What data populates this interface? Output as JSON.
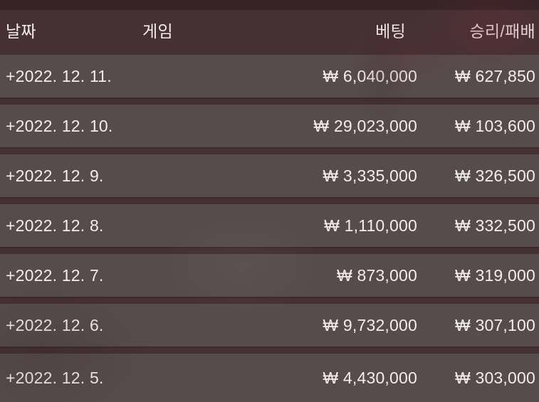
{
  "table": {
    "headers": {
      "date": "날짜",
      "game": "게임",
      "betting": "베팅",
      "winloss": "승리/패배"
    },
    "rows": [
      {
        "date": "+2022. 12. 11.",
        "game": "",
        "betting": "₩ 6,040,000",
        "winloss": "₩ 627,850"
      },
      {
        "date": "+2022. 12. 10.",
        "game": "",
        "betting": "₩ 29,023,000",
        "winloss": "₩ 103,600"
      },
      {
        "date": "+2022. 12. 9.",
        "game": "",
        "betting": "₩ 3,335,000",
        "winloss": "₩ 326,500"
      },
      {
        "date": "+2022. 12. 8.",
        "game": "",
        "betting": "₩ 1,110,000",
        "winloss": "₩ 332,500"
      },
      {
        "date": "+2022. 12. 7.",
        "game": "",
        "betting": "₩ 873,000",
        "winloss": "₩ 319,000"
      },
      {
        "date": "+2022. 12. 6.",
        "game": "",
        "betting": "₩ 9,732,000",
        "winloss": "₩ 307,100"
      },
      {
        "date": "+2022. 12. 5.",
        "game": "",
        "betting": "₩ 4,430,000",
        "winloss": "₩ 303,000"
      }
    ]
  },
  "colors": {
    "top_strip": "#362327",
    "header_bg": "#453134",
    "row_bg": "#564b4d",
    "gap_bg": "#453134",
    "text": "#f3eded"
  }
}
